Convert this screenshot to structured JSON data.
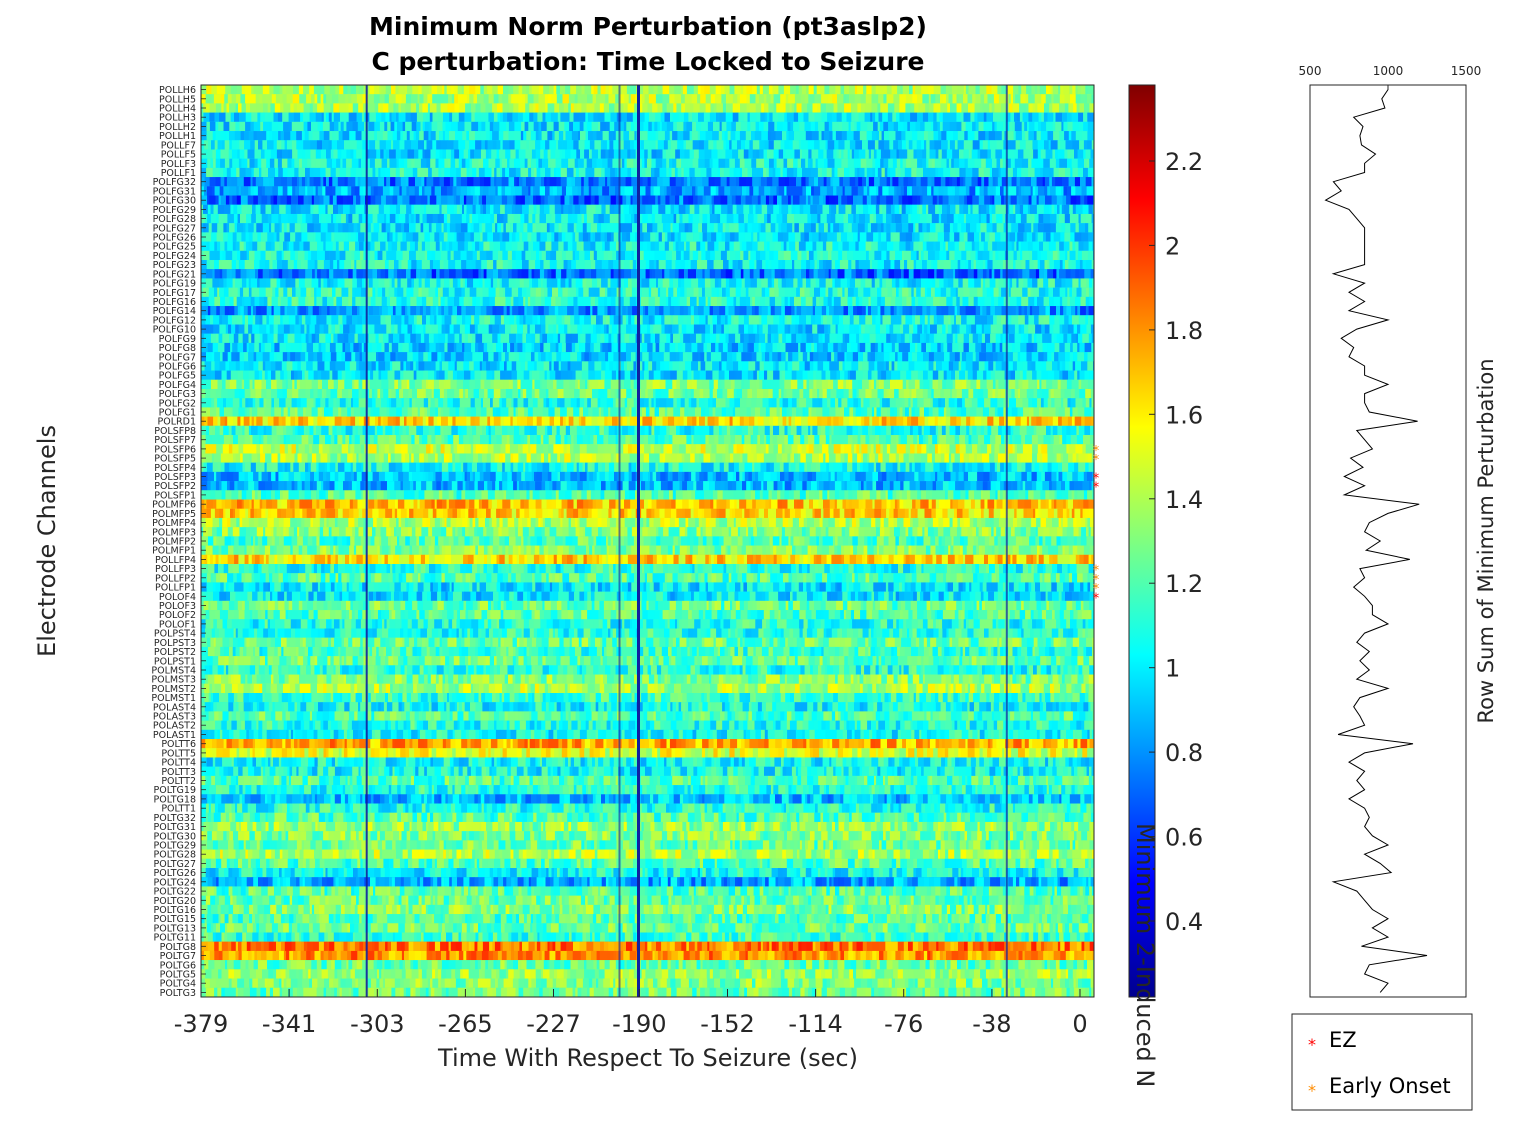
{
  "chart_data": [
    {
      "type": "heatmap",
      "title_line1": "Minimum Norm Perturbation (pt3aslp2)",
      "title_line2": "C perturbation:  Time Locked to Seizure",
      "xlabel": "Time With Respect To Seizure (sec)",
      "ylabel": "Electrode Channels",
      "x_ticks": [
        "-379",
        "-341",
        "-303",
        "-265",
        "-227",
        "-190",
        "-152",
        "-114",
        "-76",
        "-38",
        "0"
      ],
      "xlim": [
        -379,
        0
      ],
      "channels": [
        "POLLH6",
        "POLLH5",
        "POLLH4",
        "POLLH3",
        "POLLH2",
        "POLLH1",
        "POLLF7",
        "POLLF5",
        "POLLF3",
        "POLLF1",
        "POLFG32",
        "POLFG31",
        "POLFG30",
        "POLFG29",
        "POLFG28",
        "POLFG27",
        "POLFG26",
        "POLFG25",
        "POLFG24",
        "POLFG23",
        "POLFG21",
        "POLFG19",
        "POLFG17",
        "POLFG16",
        "POLFG14",
        "POLFG12",
        "POLFG10",
        "POLFG9",
        "POLFG8",
        "POLFG7",
        "POLFG6",
        "POLFG5",
        "POLFG4",
        "POLFG3",
        "POLFG2",
        "POLFG1",
        "POLRD1",
        "POLSFP8",
        "POLSFP7",
        "POLSFP6",
        "POLSFP5",
        "POLSFP4",
        "POLSFP3",
        "POLSFP2",
        "POLSFP1",
        "POLMFP6",
        "POLMFP5",
        "POLMFP4",
        "POLMFP3",
        "POLMFP2",
        "POLMFP1",
        "POLLFP4",
        "POLLFP3",
        "POLLFP2",
        "POLLFP1",
        "POLOF4",
        "POLOF3",
        "POLOF2",
        "POLOF1",
        "POLPST4",
        "POLPST3",
        "POLPST2",
        "POLPST1",
        "POLMST4",
        "POLMST3",
        "POLMST2",
        "POLMST1",
        "POLAST4",
        "POLAST3",
        "POLAST2",
        "POLAST1",
        "POLTT6",
        "POLTT5",
        "POLTT4",
        "POLTT3",
        "POLTT2",
        "POLTG19",
        "POLTG18",
        "POLTT1",
        "POLTG32",
        "POLTG31",
        "POLTG30",
        "POLTG29",
        "POLTG28",
        "POLTG27",
        "POLTG26",
        "POLTG24",
        "POLTG22",
        "POLTG20",
        "POLTG16",
        "POLTG15",
        "POLTG13",
        "POLTG11",
        "POLTG8",
        "POLTG7",
        "POLTG6",
        "POLTG5",
        "POLTG4",
        "POLTG3"
      ],
      "channel_means": [
        1.4,
        1.4,
        1.4,
        1.0,
        1.0,
        1.0,
        1.0,
        1.0,
        1.05,
        1.05,
        0.75,
        0.85,
        0.72,
        1.0,
        1.0,
        1.0,
        1.0,
        1.05,
        1.05,
        1.05,
        0.72,
        1.05,
        1.1,
        1.1,
        0.8,
        1.05,
        1.0,
        1.0,
        0.95,
        0.95,
        1.0,
        1.0,
        1.3,
        1.25,
        1.1,
        1.2,
        1.65,
        1.1,
        1.2,
        1.45,
        1.4,
        1.05,
        0.9,
        0.9,
        1.2,
        1.7,
        1.65,
        1.4,
        1.3,
        1.2,
        1.3,
        1.65,
        1.1,
        1.2,
        1.0,
        1.0,
        1.25,
        1.2,
        1.1,
        1.1,
        1.25,
        1.15,
        1.25,
        1.1,
        1.3,
        1.4,
        1.15,
        1.05,
        1.2,
        1.1,
        1.05,
        1.75,
        1.5,
        1.05,
        1.05,
        1.2,
        1.1,
        0.9,
        1.1,
        1.2,
        1.35,
        1.3,
        1.25,
        1.4,
        1.2,
        1.05,
        0.85,
        1.2,
        1.25,
        1.3,
        1.2,
        1.25,
        1.15,
        1.85,
        1.8,
        1.25,
        1.35,
        1.3,
        1.25
      ],
      "ez_channels": [
        "POLSFP3",
        "POLSFP2",
        "POLOF4"
      ],
      "early_onset_channels": [
        "POLSFP6",
        "POLSFP5",
        "POLLFP3",
        "POLLFP2",
        "POLLFP1"
      ],
      "colormap": "jet",
      "label_colors": {
        "default": "#262626",
        "ez": "#ff0000",
        "early_onset": "#ff8c00"
      },
      "marker_colors": {
        "ez": "#ff0000",
        "early_onset": "#ff8c00"
      }
    },
    {
      "type": "colorbar",
      "label": "Minimum 2-Induced N",
      "range": [
        0.22,
        2.38
      ],
      "ticks": [
        "0.4",
        "0.6",
        "0.8",
        "1",
        "1.2",
        "1.4",
        "1.6",
        "1.8",
        "2",
        "2.2"
      ],
      "colormap": "jet"
    },
    {
      "type": "line",
      "ylabel": "Row Sum of Minimum Perturbation",
      "x_ticks": [
        "500",
        "1000",
        "1500"
      ],
      "xlim": [
        500,
        1500
      ],
      "orientation": "vertical",
      "values": [
        1000,
        960,
        980,
        780,
        840,
        820,
        830,
        920,
        850,
        850,
        650,
        700,
        600,
        750,
        800,
        850,
        850,
        850,
        850,
        850,
        650,
        850,
        750,
        850,
        750,
        1000,
        800,
        700,
        780,
        750,
        850,
        850,
        1000,
        850,
        850,
        880,
        1190,
        800,
        850,
        900,
        760,
        840,
        720,
        850,
        720,
        1200,
        1000,
        880,
        850,
        950,
        860,
        1140,
        820,
        850,
        780,
        850,
        900,
        900,
        1000,
        850,
        800,
        880,
        820,
        880,
        800,
        1000,
        820,
        780,
        820,
        850,
        680,
        1160,
        850,
        750,
        850,
        800,
        850,
        750,
        850,
        880,
        850,
        900,
        1000,
        850,
        950,
        1020,
        650,
        800,
        850,
        900,
        1000,
        900,
        1000,
        830,
        1250,
        880,
        850,
        1000,
        950
      ],
      "line_color": "#000000"
    }
  ],
  "legend": {
    "items": [
      {
        "label": "EZ",
        "marker": "*",
        "color": "#ff0000"
      },
      {
        "label": "Early Onset",
        "marker": "*",
        "color": "#ff8c00"
      }
    ]
  }
}
